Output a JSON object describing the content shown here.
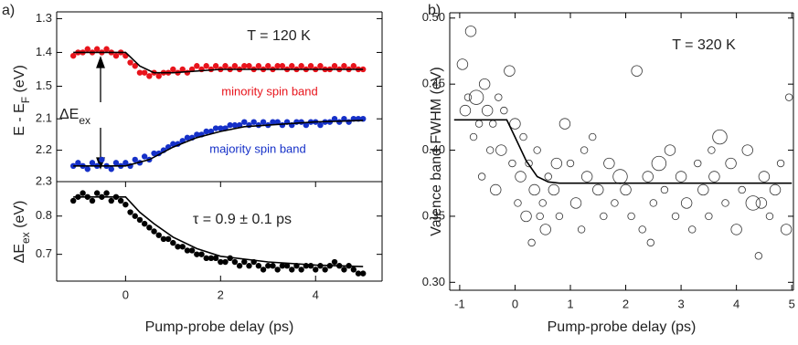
{
  "chart_data": [
    {
      "type": "scatter",
      "panel_label": "a)",
      "ylabel": [
        "E - E",
        "F",
        " (eV)"
      ],
      "annotation": "T = 120 K",
      "xlim": [
        -1.45,
        5.4
      ],
      "ylim": [
        1.28,
        1.55
      ],
      "inverted": true,
      "yticks": [
        1.3,
        1.4,
        1.5
      ],
      "x": [
        -1.1,
        -1.0,
        -0.9,
        -0.8,
        -0.7,
        -0.6,
        -0.5,
        -0.4,
        -0.3,
        -0.2,
        -0.1,
        0.0,
        0.1,
        0.2,
        0.3,
        0.4,
        0.5,
        0.6,
        0.7,
        0.8,
        0.9,
        1.0,
        1.1,
        1.2,
        1.3,
        1.4,
        1.5,
        1.6,
        1.7,
        1.8,
        1.9,
        2.0,
        2.1,
        2.2,
        2.3,
        2.4,
        2.5,
        2.6,
        2.7,
        2.8,
        2.9,
        3.0,
        3.1,
        3.2,
        3.3,
        3.4,
        3.5,
        3.6,
        3.7,
        3.8,
        3.9,
        4.0,
        4.1,
        4.2,
        4.3,
        4.4,
        4.5,
        4.6,
        4.7,
        4.8,
        4.9,
        5.0
      ],
      "series": [
        {
          "name": "minority spin band",
          "color": "#e8141c",
          "values": [
            1.41,
            1.4,
            1.4,
            1.39,
            1.4,
            1.39,
            1.4,
            1.39,
            1.4,
            1.41,
            1.4,
            1.41,
            1.43,
            1.44,
            1.46,
            1.46,
            1.47,
            1.46,
            1.47,
            1.46,
            1.46,
            1.45,
            1.46,
            1.45,
            1.46,
            1.45,
            1.44,
            1.45,
            1.44,
            1.45,
            1.44,
            1.45,
            1.44,
            1.45,
            1.44,
            1.45,
            1.44,
            1.44,
            1.45,
            1.44,
            1.45,
            1.44,
            1.45,
            1.44,
            1.44,
            1.45,
            1.44,
            1.45,
            1.44,
            1.45,
            1.44,
            1.45,
            1.44,
            1.45,
            1.45,
            1.44,
            1.45,
            1.44,
            1.45,
            1.44,
            1.45,
            1.45
          ]
        }
      ],
      "fit": {
        "color": "#000000",
        "x": [
          -1.1,
          0,
          0.3,
          0.6,
          1.0,
          2,
          5
        ],
        "values": [
          1.4,
          1.4,
          1.44,
          1.46,
          1.46,
          1.45,
          1.45
        ]
      }
    },
    {
      "type": "scatter",
      "annotation": [
        "ΔE",
        "ex"
      ],
      "xlim": [
        -1.45,
        5.4
      ],
      "ylim": [
        2.05,
        2.3
      ],
      "inverted": true,
      "yticks": [
        2.1,
        2.2,
        2.3
      ],
      "x": [
        -1.1,
        -1.0,
        -0.9,
        -0.8,
        -0.7,
        -0.6,
        -0.5,
        -0.4,
        -0.3,
        -0.2,
        -0.1,
        0.0,
        0.1,
        0.2,
        0.3,
        0.4,
        0.5,
        0.6,
        0.7,
        0.8,
        0.9,
        1.0,
        1.1,
        1.2,
        1.3,
        1.4,
        1.5,
        1.6,
        1.7,
        1.8,
        1.9,
        2.0,
        2.1,
        2.2,
        2.3,
        2.4,
        2.5,
        2.6,
        2.7,
        2.8,
        2.9,
        3.0,
        3.1,
        3.2,
        3.3,
        3.4,
        3.5,
        3.6,
        3.7,
        3.8,
        3.9,
        4.0,
        4.1,
        4.2,
        4.3,
        4.4,
        4.5,
        4.6,
        4.7,
        4.8,
        4.9,
        5.0
      ],
      "series": [
        {
          "name": "majority spin band",
          "color": "#1530c8",
          "values": [
            2.25,
            2.24,
            2.25,
            2.26,
            2.24,
            2.25,
            2.23,
            2.25,
            2.26,
            2.24,
            2.25,
            2.24,
            2.25,
            2.23,
            2.24,
            2.22,
            2.23,
            2.21,
            2.21,
            2.2,
            2.19,
            2.18,
            2.18,
            2.17,
            2.16,
            2.16,
            2.15,
            2.15,
            2.14,
            2.14,
            2.13,
            2.13,
            2.13,
            2.12,
            2.12,
            2.12,
            2.11,
            2.12,
            2.11,
            2.12,
            2.11,
            2.12,
            2.11,
            2.11,
            2.12,
            2.11,
            2.12,
            2.11,
            2.11,
            2.12,
            2.11,
            2.11,
            2.12,
            2.11,
            2.11,
            2.1,
            2.11,
            2.1,
            2.11,
            2.1,
            2.1,
            2.1
          ]
        }
      ],
      "fit": {
        "color": "#000000",
        "x": [
          -1.1,
          0,
          0.5,
          1,
          1.5,
          2,
          2.5,
          3,
          4,
          5
        ],
        "values": [
          2.25,
          2.25,
          2.23,
          2.19,
          2.16,
          2.14,
          2.125,
          2.12,
          2.11,
          2.105
        ]
      }
    },
    {
      "type": "scatter",
      "ylabel": [
        "ΔE",
        "ex",
        " (eV)"
      ],
      "xlabel": "Pump-probe delay (ps)",
      "annotation": "τ = 0.9 ± 0.1 ps",
      "xlim": [
        -1.45,
        5.4
      ],
      "ylim": [
        0.63,
        0.89
      ],
      "yticks": [
        0.7,
        0.8
      ],
      "xticks": [
        0,
        2,
        4
      ],
      "x": [
        -1.1,
        -1.0,
        -0.9,
        -0.8,
        -0.7,
        -0.6,
        -0.5,
        -0.4,
        -0.3,
        -0.2,
        -0.1,
        0.0,
        0.1,
        0.2,
        0.3,
        0.4,
        0.5,
        0.6,
        0.7,
        0.8,
        0.9,
        1.0,
        1.1,
        1.2,
        1.3,
        1.4,
        1.5,
        1.6,
        1.7,
        1.8,
        1.9,
        2.0,
        2.1,
        2.2,
        2.3,
        2.4,
        2.5,
        2.6,
        2.7,
        2.8,
        2.9,
        3.0,
        3.1,
        3.2,
        3.3,
        3.4,
        3.5,
        3.6,
        3.7,
        3.8,
        3.9,
        4.0,
        4.1,
        4.2,
        4.3,
        4.4,
        4.5,
        4.6,
        4.7,
        4.8,
        4.9,
        5.0
      ],
      "series": [
        {
          "color": "#000000",
          "values": [
            0.84,
            0.85,
            0.86,
            0.85,
            0.84,
            0.86,
            0.85,
            0.86,
            0.84,
            0.85,
            0.84,
            0.83,
            0.81,
            0.8,
            0.79,
            0.78,
            0.77,
            0.76,
            0.75,
            0.74,
            0.74,
            0.73,
            0.72,
            0.72,
            0.71,
            0.71,
            0.7,
            0.7,
            0.69,
            0.69,
            0.69,
            0.68,
            0.68,
            0.69,
            0.68,
            0.67,
            0.68,
            0.67,
            0.68,
            0.67,
            0.66,
            0.67,
            0.67,
            0.66,
            0.67,
            0.67,
            0.66,
            0.67,
            0.66,
            0.67,
            0.67,
            0.66,
            0.67,
            0.66,
            0.67,
            0.68,
            0.67,
            0.66,
            0.67,
            0.66,
            0.65,
            0.65
          ]
        }
      ],
      "fit": {
        "color": "#000000",
        "x": [
          -1.1,
          0,
          0.3,
          0.6,
          1,
          1.5,
          2,
          3,
          4,
          5
        ],
        "values": [
          0.85,
          0.85,
          0.81,
          0.78,
          0.745,
          0.715,
          0.695,
          0.68,
          0.672,
          0.668
        ]
      }
    },
    {
      "type": "bubble",
      "panel_label": "b)",
      "ylabel": "Valence band FWHM (eV)",
      "xlabel": "Pump-probe delay (ps)",
      "annotation": "T = 320 K",
      "xlim": [
        -1.18,
        5.03
      ],
      "ylim": [
        0.294,
        0.504
      ],
      "xticks": [
        -1,
        0,
        1,
        2,
        3,
        4,
        5
      ],
      "yticks": [
        {
          "value": 0.3,
          "label": "0.30"
        },
        {
          "value": 0.35,
          "label": "0.35"
        },
        {
          "value": 0.4,
          "label": "0.40"
        },
        {
          "value": 0.45,
          "label": "0.45"
        },
        {
          "value": 0.5,
          "label": "0.50"
        }
      ],
      "color": "#333333",
      "x": [
        -0.95,
        -0.9,
        -0.85,
        -0.8,
        -0.75,
        -0.7,
        -0.65,
        -0.6,
        -0.55,
        -0.5,
        -0.45,
        -0.4,
        -0.35,
        -0.3,
        -0.25,
        -0.2,
        -0.1,
        -0.05,
        0.0,
        0.05,
        0.1,
        0.15,
        0.2,
        0.25,
        0.3,
        0.35,
        0.4,
        0.5,
        0.55,
        0.6,
        0.7,
        0.8,
        0.9,
        1.0,
        1.1,
        1.2,
        1.3,
        1.4,
        1.5,
        1.6,
        1.7,
        1.8,
        1.9,
        2.0,
        2.1,
        2.2,
        2.3,
        2.4,
        2.5,
        2.6,
        2.7,
        2.8,
        2.9,
        3.0,
        3.1,
        3.2,
        3.3,
        3.4,
        3.5,
        3.6,
        3.7,
        3.8,
        3.9,
        4.0,
        4.1,
        4.2,
        4.3,
        4.4,
        4.5,
        4.6,
        4.7,
        4.8,
        4.9,
        4.95,
        1.25,
        0.75,
        2.45,
        3.55,
        4.45,
        0.45
      ],
      "values": [
        0.465,
        0.43,
        0.44,
        0.49,
        0.41,
        0.44,
        0.42,
        0.38,
        0.45,
        0.43,
        0.4,
        0.42,
        0.37,
        0.44,
        0.4,
        0.43,
        0.46,
        0.39,
        0.42,
        0.36,
        0.38,
        0.41,
        0.35,
        0.39,
        0.33,
        0.37,
        0.4,
        0.36,
        0.34,
        0.38,
        0.37,
        0.35,
        0.42,
        0.39,
        0.36,
        0.34,
        0.38,
        0.41,
        0.37,
        0.35,
        0.39,
        0.36,
        0.38,
        0.37,
        0.35,
        0.46,
        0.34,
        0.38,
        0.36,
        0.39,
        0.37,
        0.4,
        0.35,
        0.38,
        0.36,
        0.34,
        0.39,
        0.37,
        0.35,
        0.38,
        0.41,
        0.36,
        0.39,
        0.34,
        0.37,
        0.4,
        0.36,
        0.32,
        0.38,
        0.35,
        0.37,
        0.39,
        0.34,
        0.44,
        0.4,
        0.39,
        0.33,
        0.4,
        0.36,
        0.35
      ],
      "sizes": [
        2,
        2,
        1,
        2,
        1,
        3,
        1,
        1,
        2,
        2,
        1,
        1,
        2,
        1,
        2,
        1,
        2,
        1,
        2,
        1,
        2,
        1,
        2,
        1,
        1,
        2,
        1,
        1,
        2,
        1,
        2,
        1,
        2,
        1,
        2,
        1,
        2,
        1,
        2,
        1,
        2,
        1,
        3,
        2,
        1,
        2,
        1,
        2,
        1,
        3,
        1,
        2,
        1,
        2,
        2,
        1,
        1,
        2,
        1,
        2,
        3,
        1,
        2,
        2,
        1,
        2,
        3,
        1,
        2,
        1,
        2,
        1,
        2,
        1,
        1,
        2,
        1,
        1,
        2,
        1
      ],
      "fit": {
        "color": "#000000",
        "x": [
          -1.1,
          -0.15,
          0,
          0.2,
          0.4,
          0.6,
          0.8,
          5.0
        ],
        "values": [
          0.423,
          0.423,
          0.41,
          0.392,
          0.38,
          0.376,
          0.375,
          0.375
        ]
      }
    }
  ]
}
